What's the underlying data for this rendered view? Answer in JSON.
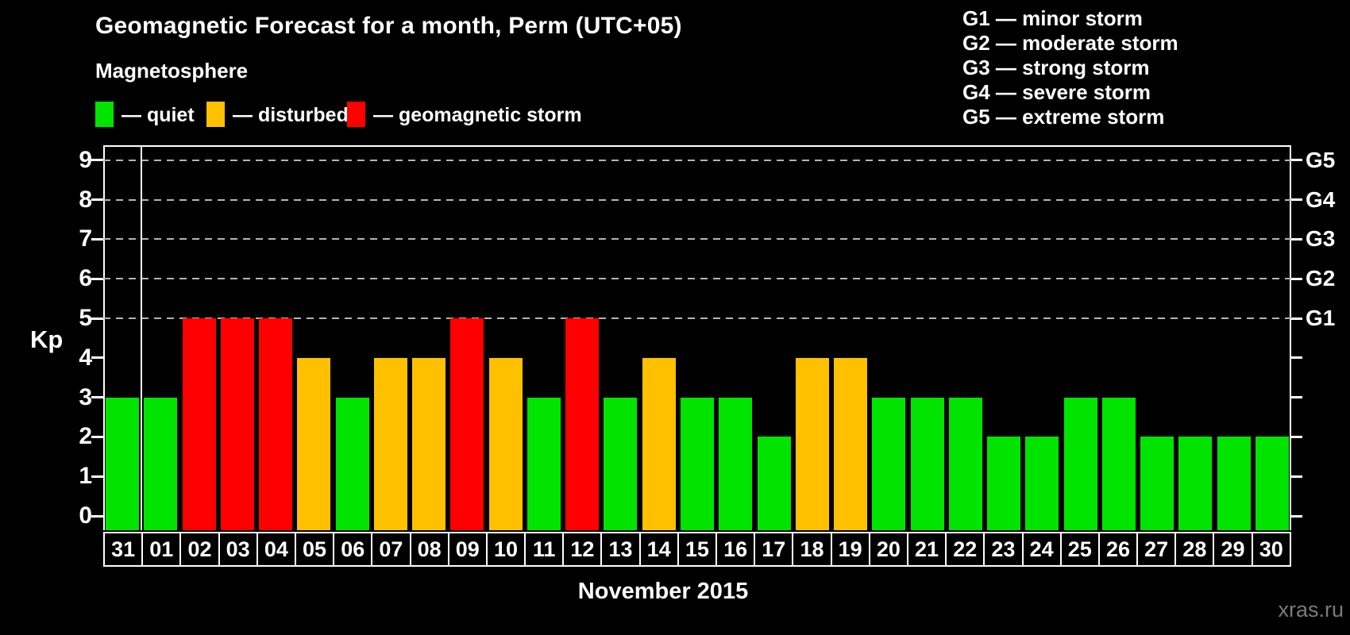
{
  "header": {
    "title": "Geomagnetic Forecast for a month, Perm (UTC+05)",
    "subtitle": "Magnetosphere"
  },
  "legend": {
    "items": [
      {
        "key": "quiet",
        "label": "— quiet",
        "color": "#00e400"
      },
      {
        "key": "disturbed",
        "label": "— disturbed",
        "color": "#ffc000"
      },
      {
        "key": "storm",
        "label": "— geomagnetic storm",
        "color": "#ff0000"
      }
    ]
  },
  "g_legend": {
    "lines": [
      "G1 — minor storm",
      "G2 — moderate storm",
      "G3 — strong storm",
      "G4 — severe storm",
      "G5 — extreme storm"
    ]
  },
  "chart_data": {
    "type": "bar",
    "title": "Geomagnetic Forecast for a month, Perm (UTC+05)",
    "ylabel": "Kp",
    "xlabel": "November 2015",
    "ylim": [
      0,
      9
    ],
    "y_ticks": [
      0,
      1,
      2,
      3,
      4,
      5,
      6,
      7,
      8,
      9
    ],
    "gridline_levels": [
      5,
      6,
      7,
      8,
      9
    ],
    "right_axis_labels": [
      {
        "level": 5,
        "label": "G1"
      },
      {
        "level": 6,
        "label": "G2"
      },
      {
        "level": 7,
        "label": "G3"
      },
      {
        "level": 8,
        "label": "G4"
      },
      {
        "level": 9,
        "label": "G5"
      }
    ],
    "categories": [
      "31",
      "01",
      "02",
      "03",
      "04",
      "05",
      "06",
      "07",
      "08",
      "09",
      "10",
      "11",
      "12",
      "13",
      "14",
      "15",
      "16",
      "17",
      "18",
      "19",
      "20",
      "21",
      "22",
      "23",
      "24",
      "25",
      "26",
      "27",
      "28",
      "29",
      "30"
    ],
    "values": [
      3,
      3,
      5,
      5,
      5,
      4,
      3,
      4,
      4,
      5,
      4,
      3,
      5,
      3,
      4,
      3,
      3,
      2,
      4,
      4,
      3,
      3,
      3,
      2,
      2,
      3,
      3,
      2,
      2,
      2,
      2
    ],
    "statuses": [
      "quiet",
      "quiet",
      "storm",
      "storm",
      "storm",
      "disturbed",
      "quiet",
      "disturbed",
      "disturbed",
      "storm",
      "disturbed",
      "quiet",
      "storm",
      "quiet",
      "disturbed",
      "quiet",
      "quiet",
      "quiet",
      "disturbed",
      "disturbed",
      "quiet",
      "quiet",
      "quiet",
      "quiet",
      "quiet",
      "quiet",
      "quiet",
      "quiet",
      "quiet",
      "quiet",
      "quiet"
    ],
    "status_colors": {
      "quiet": "#00e400",
      "disturbed": "#ffc000",
      "storm": "#ff0000"
    },
    "month_separator_after_index": 0
  },
  "watermark": "xras.ru"
}
